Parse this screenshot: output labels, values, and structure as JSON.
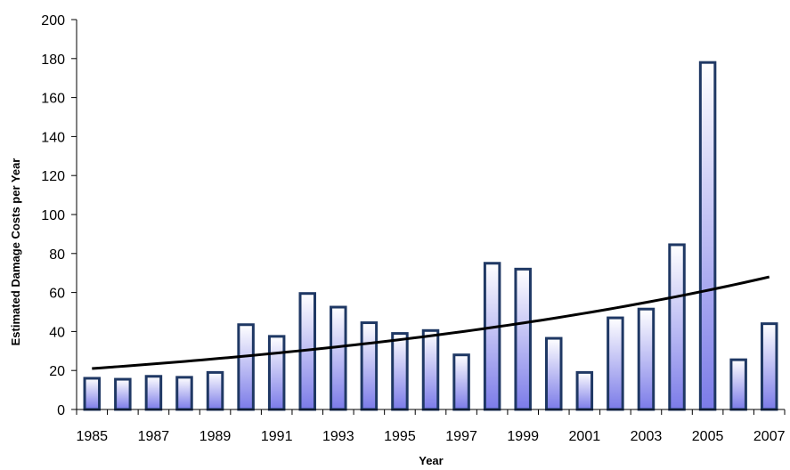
{
  "chart_data": {
    "type": "bar",
    "title": "",
    "xlabel": "Year",
    "ylabel": "Estimated Damage Costs per Year",
    "ylim": [
      0,
      200
    ],
    "yticks": [
      0,
      20,
      40,
      60,
      80,
      100,
      120,
      140,
      160,
      180,
      200
    ],
    "xtick_labels": [
      "1985",
      "1987",
      "1989",
      "1991",
      "1993",
      "1995",
      "1997",
      "1999",
      "2001",
      "2003",
      "2005",
      "2007"
    ],
    "categories": [
      "1985",
      "1986",
      "1987",
      "1988",
      "1989",
      "1990",
      "1991",
      "1992",
      "1993",
      "1994",
      "1995",
      "1996",
      "1997",
      "1998",
      "1999",
      "2000",
      "2001",
      "2002",
      "2003",
      "2004",
      "2005",
      "2006",
      "2007"
    ],
    "values": [
      16,
      15.5,
      17,
      16.5,
      19,
      43.5,
      37.5,
      59.5,
      52.5,
      44.5,
      39,
      40.5,
      28,
      75,
      72,
      36.5,
      19,
      47,
      51.5,
      84.5,
      178,
      25.5,
      44
    ],
    "trendline": {
      "type": "exponential",
      "start": 21,
      "end": 68
    },
    "grid": false,
    "legend": "none",
    "colors": {
      "bar_border": "#1f3864",
      "bar_fill_top": "#ffffff",
      "bar_fill_bottom": "#7b7be8",
      "trendline": "#000000"
    }
  }
}
